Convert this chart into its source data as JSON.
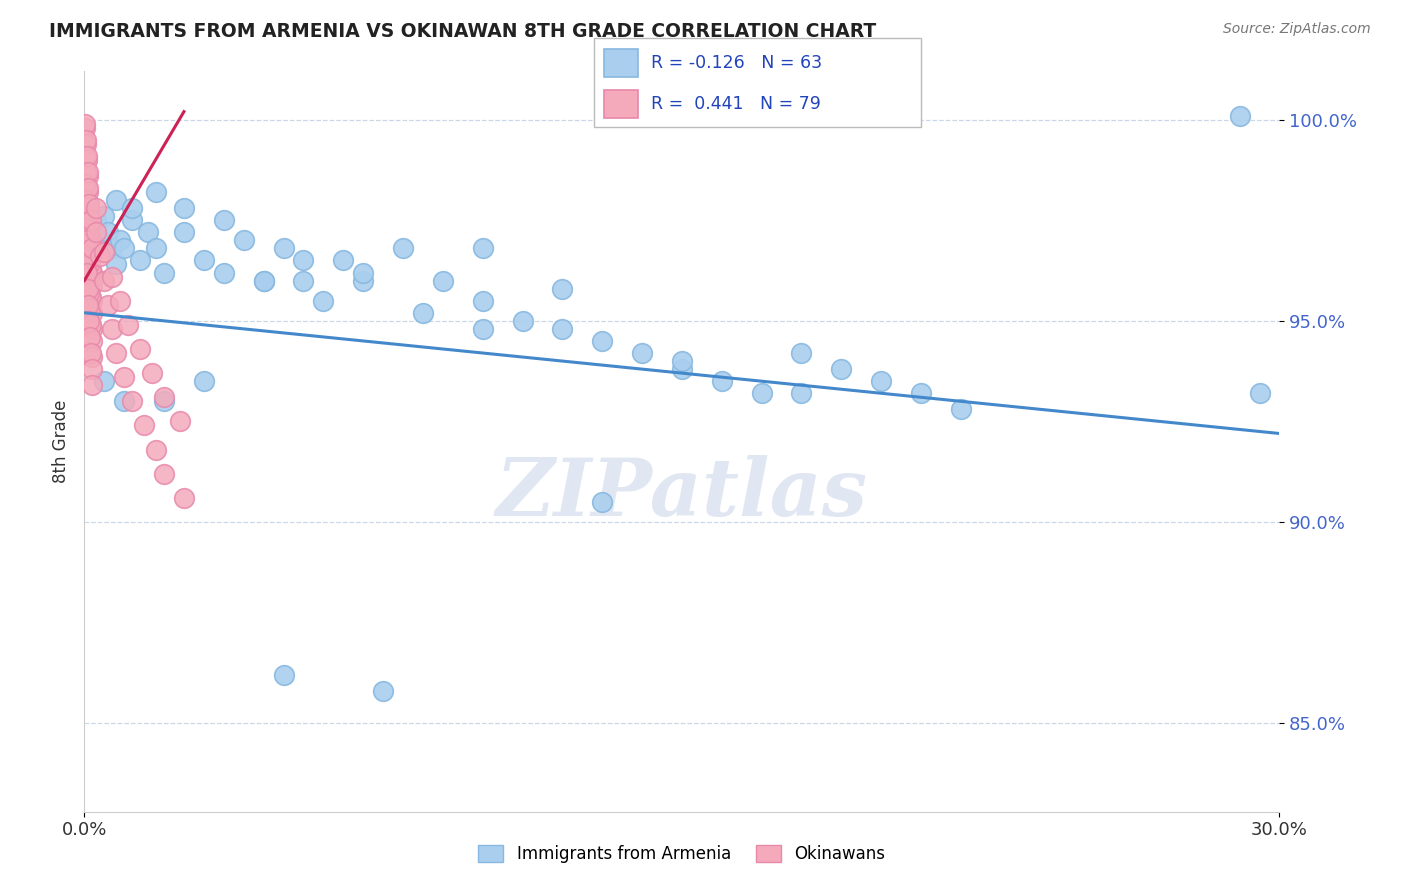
{
  "title": "IMMIGRANTS FROM ARMENIA VS OKINAWAN 8TH GRADE CORRELATION CHART",
  "source_text": "Source: ZipAtlas.com",
  "ylabel": "8th Grade",
  "x_min": 0.0,
  "x_max": 0.3,
  "y_min": 0.828,
  "y_max": 1.012,
  "x_ticks": [
    0.0,
    0.3
  ],
  "x_tick_labels": [
    "0.0%",
    "30.0%"
  ],
  "y_ticks": [
    0.85,
    0.9,
    0.95,
    1.0
  ],
  "y_tick_labels": [
    "85.0%",
    "90.0%",
    "95.0%",
    "100.0%"
  ],
  "blue_color": "#aacfee",
  "blue_edge": "#88b8e0",
  "pink_color": "#f4aabb",
  "pink_edge": "#e888aa",
  "trend_blue_color": "#4488cc",
  "trend_pink_color": "#cc2255",
  "legend_R_blue": "R = -0.126",
  "legend_N_blue": "N = 63",
  "legend_R_pink": "R =  0.441",
  "legend_N_pink": "N = 79",
  "legend_label_blue": "Immigrants from Armenia",
  "legend_label_pink": "Okinawans",
  "watermark": "ZIPatlas",
  "blue_trend_x0": 0.0,
  "blue_trend_y0": 0.952,
  "blue_trend_x1": 0.3,
  "blue_trend_y1": 0.922,
  "pink_trend_x0": 0.0,
  "pink_trend_y0": 0.96,
  "pink_trend_x1": 0.025,
  "pink_trend_y1": 1.002,
  "blue_scatter_x": [
    0.001,
    0.002,
    0.003,
    0.004,
    0.005,
    0.006,
    0.007,
    0.008,
    0.009,
    0.01,
    0.012,
    0.014,
    0.016,
    0.018,
    0.02,
    0.025,
    0.03,
    0.035,
    0.04,
    0.045,
    0.05,
    0.055,
    0.06,
    0.065,
    0.07,
    0.08,
    0.09,
    0.1,
    0.11,
    0.12,
    0.13,
    0.14,
    0.15,
    0.16,
    0.17,
    0.18,
    0.19,
    0.2,
    0.21,
    0.22,
    0.008,
    0.012,
    0.018,
    0.025,
    0.035,
    0.045,
    0.055,
    0.07,
    0.085,
    0.1,
    0.12,
    0.15,
    0.18,
    0.005,
    0.01,
    0.02,
    0.03,
    0.05,
    0.075,
    0.1,
    0.13,
    0.29,
    0.295
  ],
  "blue_scatter_y": [
    0.967,
    0.971,
    0.975,
    0.97,
    0.976,
    0.972,
    0.968,
    0.964,
    0.97,
    0.968,
    0.975,
    0.965,
    0.972,
    0.968,
    0.962,
    0.972,
    0.965,
    0.962,
    0.97,
    0.96,
    0.968,
    0.96,
    0.955,
    0.965,
    0.96,
    0.968,
    0.96,
    0.955,
    0.95,
    0.948,
    0.945,
    0.942,
    0.938,
    0.935,
    0.932,
    0.942,
    0.938,
    0.935,
    0.932,
    0.928,
    0.98,
    0.978,
    0.982,
    0.978,
    0.975,
    0.96,
    0.965,
    0.962,
    0.952,
    0.968,
    0.958,
    0.94,
    0.932,
    0.935,
    0.93,
    0.93,
    0.935,
    0.862,
    0.858,
    0.948,
    0.905,
    1.001,
    0.932
  ],
  "pink_scatter_x": [
    0.0002,
    0.0004,
    0.0006,
    0.0008,
    0.001,
    0.0012,
    0.0014,
    0.0016,
    0.0018,
    0.002,
    0.0002,
    0.0004,
    0.0006,
    0.0008,
    0.001,
    0.0012,
    0.0014,
    0.0016,
    0.0018,
    0.002,
    0.0002,
    0.0004,
    0.0006,
    0.0008,
    0.001,
    0.0012,
    0.0014,
    0.0016,
    0.0018,
    0.002,
    0.0002,
    0.0004,
    0.0006,
    0.0008,
    0.001,
    0.0012,
    0.0014,
    0.0016,
    0.0018,
    0.002,
    0.0002,
    0.0004,
    0.0006,
    0.0008,
    0.001,
    0.0012,
    0.0014,
    0.0016,
    0.0018,
    0.002,
    0.0002,
    0.0004,
    0.0006,
    0.0008,
    0.001,
    0.0012,
    0.0016,
    0.002,
    0.003,
    0.004,
    0.005,
    0.006,
    0.007,
    0.008,
    0.01,
    0.012,
    0.015,
    0.018,
    0.02,
    0.025,
    0.003,
    0.005,
    0.007,
    0.009,
    0.011,
    0.014,
    0.017,
    0.02,
    0.024
  ],
  "pink_scatter_y": [
    0.998,
    0.994,
    0.99,
    0.986,
    0.982,
    0.978,
    0.974,
    0.97,
    0.966,
    0.962,
    0.991,
    0.987,
    0.983,
    0.979,
    0.975,
    0.971,
    0.967,
    0.963,
    0.959,
    0.955,
    0.984,
    0.98,
    0.976,
    0.972,
    0.968,
    0.964,
    0.96,
    0.956,
    0.952,
    0.948,
    0.977,
    0.973,
    0.969,
    0.965,
    0.961,
    0.957,
    0.953,
    0.949,
    0.945,
    0.941,
    0.97,
    0.966,
    0.962,
    0.958,
    0.954,
    0.95,
    0.946,
    0.942,
    0.938,
    0.934,
    0.999,
    0.995,
    0.991,
    0.987,
    0.983,
    0.979,
    0.975,
    0.968,
    0.972,
    0.966,
    0.96,
    0.954,
    0.948,
    0.942,
    0.936,
    0.93,
    0.924,
    0.918,
    0.912,
    0.906,
    0.978,
    0.967,
    0.961,
    0.955,
    0.949,
    0.943,
    0.937,
    0.931,
    0.925
  ]
}
